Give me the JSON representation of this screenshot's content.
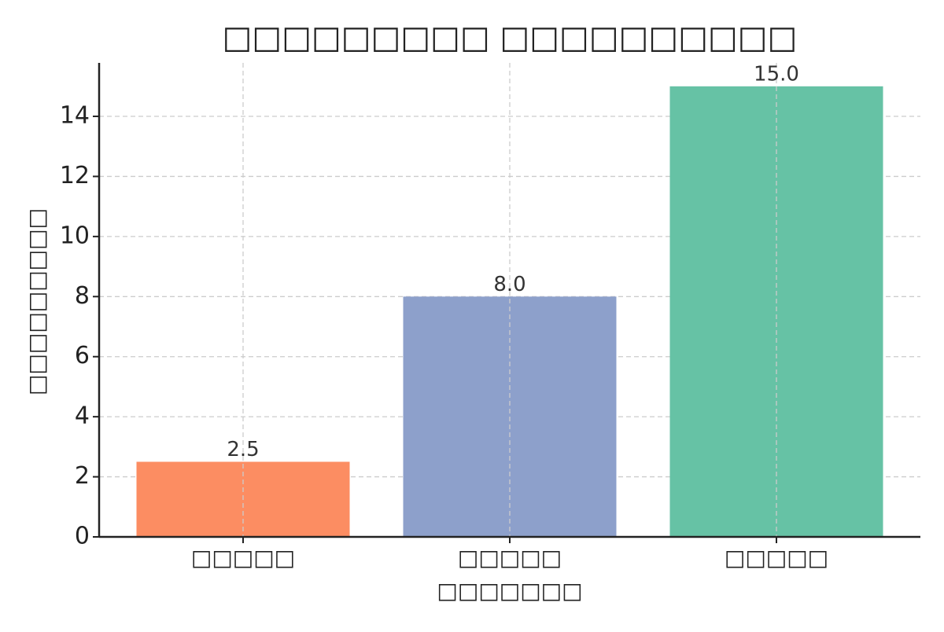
{
  "chart_data": {
    "type": "bar",
    "title": "□□□□□□□□□ □□□□□□□□□□",
    "x_label": "□□□□□□□",
    "y_label": "□□□□□□□□□",
    "categories": [
      "□□□□□",
      "□□□□□",
      "□□□□□"
    ],
    "values": [
      2.5,
      8,
      15
    ],
    "value_labels": [
      "2.5",
      "8.0",
      "15.0"
    ],
    "colors": [
      "#fc8d62",
      "#8da0cb",
      "#66c2a5"
    ],
    "ylim": [
      0,
      15.78
    ],
    "yticks": [
      0,
      2,
      4,
      6,
      8,
      10,
      12,
      14
    ],
    "grid": true
  }
}
